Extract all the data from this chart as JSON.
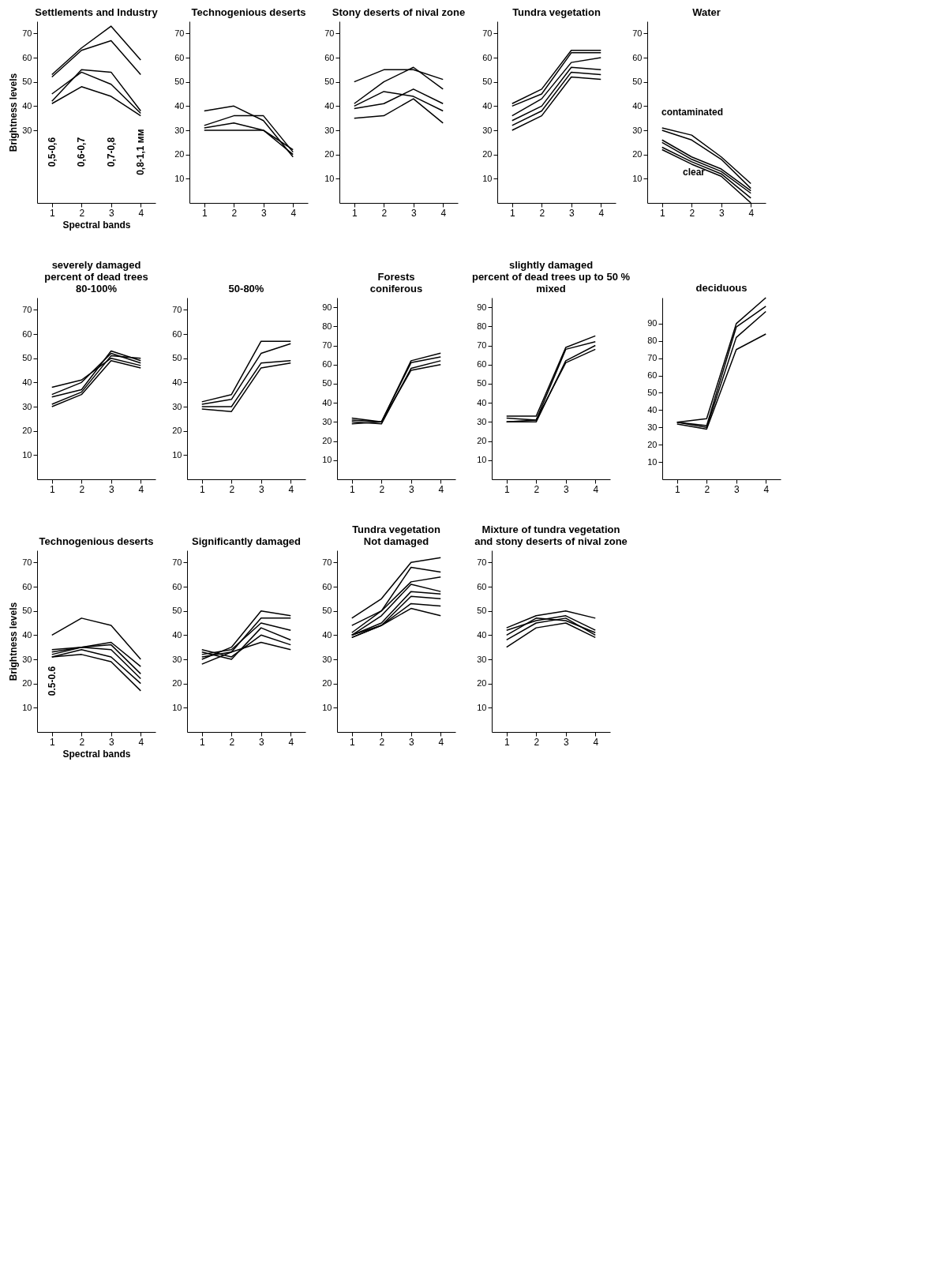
{
  "chart_data": [
    {
      "type": "line",
      "title": "Settlements and Industry",
      "ylabel": "Brightness levels",
      "xlabel": "Spectral bands",
      "categories": [
        "1",
        "2",
        "3",
        "4"
      ],
      "ylim": [
        0,
        75
      ],
      "yticks": [
        30,
        40,
        50,
        60,
        70
      ],
      "grid": false,
      "legend": false,
      "annotations": [
        "0,5-0,6",
        "0,6-0,7",
        "0,7-0,8",
        "0,8-1,1 мм"
      ],
      "series": [
        {
          "color": "#000000",
          "values": [
            53,
            64,
            73,
            59
          ]
        },
        {
          "color": "#000000",
          "values": [
            52,
            63,
            67,
            53
          ]
        },
        {
          "color": "#000000",
          "values": [
            45,
            54,
            49,
            37
          ]
        },
        {
          "color": "#000000",
          "values": [
            42,
            55,
            54,
            38
          ]
        },
        {
          "color": "#000000",
          "values": [
            41,
            48,
            44,
            36
          ]
        }
      ]
    },
    {
      "type": "line",
      "title": "Technogenious  deserts",
      "categories": [
        "1",
        "2",
        "3",
        "4"
      ],
      "ylim": [
        0,
        75
      ],
      "yticks": [
        10,
        20,
        30,
        40,
        50,
        60,
        70
      ],
      "grid": false,
      "legend": false,
      "series": [
        {
          "color": "#000000",
          "values": [
            38,
            40,
            34,
            19
          ]
        },
        {
          "color": "#000000",
          "values": [
            32,
            36,
            36,
            21
          ]
        },
        {
          "color": "#000000",
          "values": [
            31,
            33,
            30,
            22
          ]
        },
        {
          "color": "#000000",
          "values": [
            30,
            30,
            30,
            20
          ]
        }
      ]
    },
    {
      "type": "line",
      "title": "Stony deserts of nival zone",
      "categories": [
        "1",
        "2",
        "3",
        "4"
      ],
      "ylim": [
        0,
        75
      ],
      "yticks": [
        10,
        20,
        30,
        40,
        50,
        60,
        70
      ],
      "grid": false,
      "legend": false,
      "series": [
        {
          "color": "#000000",
          "values": [
            50,
            55,
            55,
            51
          ]
        },
        {
          "color": "#000000",
          "values": [
            41,
            50,
            56,
            47
          ]
        },
        {
          "color": "#000000",
          "values": [
            40,
            46,
            44,
            38
          ]
        },
        {
          "color": "#000000",
          "values": [
            39,
            41,
            47,
            41
          ]
        },
        {
          "color": "#000000",
          "values": [
            35,
            36,
            43,
            33
          ]
        }
      ]
    },
    {
      "type": "line",
      "title": "Tundra vegetation",
      "categories": [
        "1",
        "2",
        "3",
        "4"
      ],
      "ylim": [
        0,
        75
      ],
      "yticks": [
        10,
        20,
        30,
        40,
        50,
        60,
        70
      ],
      "grid": false,
      "legend": false,
      "series": [
        {
          "color": "#000000",
          "values": [
            41,
            47,
            63,
            63
          ]
        },
        {
          "color": "#000000",
          "values": [
            40,
            45,
            62,
            62
          ]
        },
        {
          "color": "#000000",
          "values": [
            36,
            43,
            58,
            60
          ]
        },
        {
          "color": "#000000",
          "values": [
            34,
            40,
            56,
            55
          ]
        },
        {
          "color": "#000000",
          "values": [
            32,
            38,
            54,
            53
          ]
        },
        {
          "color": "#000000",
          "values": [
            30,
            36,
            52,
            51
          ]
        }
      ]
    },
    {
      "type": "line",
      "title": "Water",
      "categories": [
        "1",
        "2",
        "3",
        "4"
      ],
      "ylim": [
        0,
        75
      ],
      "yticks": [
        10,
        20,
        30,
        40,
        50,
        60,
        70
      ],
      "grid": false,
      "legend": false,
      "annotations": [
        "contaminated",
        "clear"
      ],
      "series": [
        {
          "color": "#000000",
          "values": [
            31,
            28,
            19,
            8
          ]
        },
        {
          "color": "#000000",
          "values": [
            30,
            26,
            18,
            6
          ]
        },
        {
          "color": "#000000",
          "values": [
            26,
            19,
            14,
            5
          ]
        },
        {
          "color": "#000000",
          "values": [
            25,
            18,
            13,
            4
          ]
        },
        {
          "color": "#000000",
          "values": [
            23,
            17,
            12,
            2
          ]
        },
        {
          "color": "#000000",
          "values": [
            22,
            16,
            11,
            0
          ]
        }
      ]
    },
    {
      "type": "line",
      "title": "80-100%",
      "annotations": [
        "severely damaged",
        "percent of dead trees"
      ],
      "categories": [
        "1",
        "2",
        "3",
        "4"
      ],
      "ylim": [
        0,
        75
      ],
      "yticks": [
        10,
        20,
        30,
        40,
        50,
        60,
        70
      ],
      "grid": false,
      "legend": false,
      "series": [
        {
          "color": "#000000",
          "values": [
            38,
            41,
            50,
            47
          ]
        },
        {
          "color": "#000000",
          "values": [
            35,
            40,
            52,
            48
          ]
        },
        {
          "color": "#000000",
          "values": [
            34,
            37,
            53,
            49
          ]
        },
        {
          "color": "#000000",
          "values": [
            31,
            36,
            51,
            50
          ]
        },
        {
          "color": "#000000",
          "values": [
            30,
            35,
            49,
            46
          ]
        }
      ]
    },
    {
      "type": "line",
      "title": "50-80%",
      "categories": [
        "1",
        "2",
        "3",
        "4"
      ],
      "ylim": [
        0,
        75
      ],
      "yticks": [
        10,
        20,
        30,
        40,
        50,
        60,
        70
      ],
      "grid": false,
      "legend": false,
      "series": [
        {
          "color": "#000000",
          "values": [
            32,
            35,
            57,
            57
          ]
        },
        {
          "color": "#000000",
          "values": [
            31,
            33,
            52,
            56
          ]
        },
        {
          "color": "#000000",
          "values": [
            30,
            30,
            48,
            49
          ]
        },
        {
          "color": "#000000",
          "values": [
            29,
            28,
            46,
            48
          ]
        }
      ]
    },
    {
      "type": "line",
      "title": "coniferous",
      "annotations": [
        "Forests"
      ],
      "categories": [
        "1",
        "2",
        "3",
        "4"
      ],
      "ylim": [
        0,
        95
      ],
      "yticks": [
        10,
        20,
        30,
        40,
        50,
        60,
        70,
        80,
        90
      ],
      "grid": false,
      "legend": false,
      "series": [
        {
          "color": "#000000",
          "values": [
            32,
            30,
            62,
            66
          ]
        },
        {
          "color": "#000000",
          "values": [
            31,
            30,
            61,
            64
          ]
        },
        {
          "color": "#000000",
          "values": [
            30,
            29,
            58,
            62
          ]
        },
        {
          "color": "#000000",
          "values": [
            29,
            30,
            57,
            60
          ]
        }
      ]
    },
    {
      "type": "line",
      "title": "mixed",
      "annotations": [
        "slightly damaged",
        "percent of dead trees up to 50 %"
      ],
      "categories": [
        "1",
        "2",
        "3",
        "4"
      ],
      "ylim": [
        0,
        95
      ],
      "yticks": [
        10,
        20,
        30,
        40,
        50,
        60,
        70,
        80,
        90
      ],
      "grid": false,
      "legend": false,
      "series": [
        {
          "color": "#000000",
          "values": [
            33,
            33,
            69,
            75
          ]
        },
        {
          "color": "#000000",
          "values": [
            32,
            31,
            68,
            72
          ]
        },
        {
          "color": "#000000",
          "values": [
            30,
            30,
            62,
            70
          ]
        },
        {
          "color": "#000000",
          "values": [
            30,
            31,
            61,
            68
          ]
        }
      ]
    },
    {
      "type": "line",
      "title": "deciduous",
      "categories": [
        "1",
        "2",
        "3",
        "4"
      ],
      "ylim": [
        0,
        105
      ],
      "yticks": [
        10,
        20,
        30,
        40,
        50,
        60,
        70,
        80,
        90
      ],
      "grid": false,
      "legend": false,
      "series": [
        {
          "color": "#000000",
          "values": [
            33,
            35,
            90,
            105
          ]
        },
        {
          "color": "#000000",
          "values": [
            33,
            31,
            88,
            100
          ]
        },
        {
          "color": "#000000",
          "values": [
            33,
            30,
            82,
            97
          ]
        },
        {
          "color": "#000000",
          "values": [
            32,
            29,
            75,
            84
          ]
        }
      ]
    },
    {
      "type": "line",
      "title": "Technogenious deserts",
      "ylabel": "Brightness levels",
      "xlabel": "Spectral bands",
      "categories": [
        "1",
        "2",
        "3",
        "4"
      ],
      "ylim": [
        0,
        75
      ],
      "yticks": [
        10,
        20,
        30,
        40,
        50,
        60,
        70
      ],
      "grid": false,
      "legend": false,
      "annotations": [
        "0.5-0.6"
      ],
      "series": [
        {
          "color": "#000000",
          "values": [
            40,
            47,
            44,
            30
          ]
        },
        {
          "color": "#000000",
          "values": [
            34,
            35,
            37,
            27
          ]
        },
        {
          "color": "#000000",
          "values": [
            33,
            35,
            36,
            24
          ]
        },
        {
          "color": "#000000",
          "values": [
            32,
            35,
            34,
            22
          ]
        },
        {
          "color": "#000000",
          "values": [
            31,
            34,
            31,
            20
          ]
        },
        {
          "color": "#000000",
          "values": [
            31,
            32,
            29,
            17
          ]
        }
      ]
    },
    {
      "type": "line",
      "title": "Significantly  damaged",
      "categories": [
        "1",
        "2",
        "3",
        "4"
      ],
      "ylim": [
        0,
        75
      ],
      "yticks": [
        10,
        20,
        30,
        40,
        50,
        60,
        70
      ],
      "grid": false,
      "legend": false,
      "series": [
        {
          "color": "#000000",
          "values": [
            30,
            35,
            50,
            48
          ]
        },
        {
          "color": "#000000",
          "values": [
            31,
            33,
            47,
            47
          ]
        },
        {
          "color": "#000000",
          "values": [
            32,
            34,
            45,
            42
          ]
        },
        {
          "color": "#000000",
          "values": [
            33,
            30,
            43,
            38
          ]
        },
        {
          "color": "#000000",
          "values": [
            34,
            31,
            40,
            36
          ]
        },
        {
          "color": "#000000",
          "values": [
            28,
            33,
            37,
            34
          ]
        }
      ]
    },
    {
      "type": "line",
      "title": "Not damaged",
      "annotations": [
        "Tundra vegetation"
      ],
      "categories": [
        "1",
        "2",
        "3",
        "4"
      ],
      "ylim": [
        0,
        75
      ],
      "yticks": [
        10,
        20,
        30,
        40,
        50,
        60,
        70
      ],
      "grid": false,
      "legend": false,
      "series": [
        {
          "color": "#000000",
          "values": [
            47,
            55,
            70,
            72
          ]
        },
        {
          "color": "#000000",
          "values": [
            44,
            50,
            68,
            66
          ]
        },
        {
          "color": "#000000",
          "values": [
            41,
            50,
            62,
            64
          ]
        },
        {
          "color": "#000000",
          "values": [
            40,
            48,
            61,
            58
          ]
        },
        {
          "color": "#000000",
          "values": [
            40,
            45,
            58,
            57
          ]
        },
        {
          "color": "#000000",
          "values": [
            39,
            44,
            56,
            55
          ]
        },
        {
          "color": "#000000",
          "values": [
            39,
            44,
            53,
            52
          ]
        },
        {
          "color": "#000000",
          "values": [
            40,
            44,
            51,
            48
          ]
        }
      ]
    },
    {
      "type": "line",
      "title": "Mixture of tundra vegetation\nand  stony deserts of nival  zone",
      "categories": [
        "1",
        "2",
        "3",
        "4"
      ],
      "ylim": [
        0,
        75
      ],
      "yticks": [
        10,
        20,
        30,
        40,
        50,
        60,
        70
      ],
      "grid": false,
      "legend": false,
      "series": [
        {
          "color": "#000000",
          "values": [
            43,
            48,
            50,
            47
          ]
        },
        {
          "color": "#000000",
          "values": [
            42,
            46,
            48,
            42
          ]
        },
        {
          "color": "#000000",
          "values": [
            40,
            47,
            46,
            41
          ]
        },
        {
          "color": "#000000",
          "values": [
            38,
            45,
            47,
            40
          ]
        },
        {
          "color": "#000000",
          "values": [
            35,
            43,
            45,
            39
          ]
        }
      ]
    }
  ]
}
